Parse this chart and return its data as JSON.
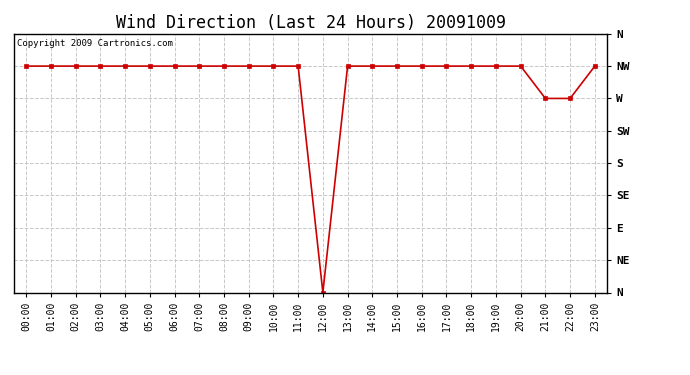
{
  "title": "Wind Direction (Last 24 Hours) 20091009",
  "copyright_text": "Copyright 2009 Cartronics.com",
  "background_color": "#ffffff",
  "plot_bg_color": "#ffffff",
  "line_color": "#cc0000",
  "marker_color": "#cc0000",
  "grid_color": "#c8c8c8",
  "x_labels": [
    "00:00",
    "01:00",
    "02:00",
    "03:00",
    "04:00",
    "05:00",
    "06:00",
    "07:00",
    "08:00",
    "09:00",
    "10:00",
    "11:00",
    "12:00",
    "13:00",
    "14:00",
    "15:00",
    "16:00",
    "17:00",
    "18:00",
    "19:00",
    "20:00",
    "21:00",
    "22:00",
    "23:00"
  ],
  "y_ticks": [
    360,
    315,
    270,
    225,
    180,
    135,
    90,
    45,
    0
  ],
  "y_labels": [
    "N",
    "NW",
    "W",
    "SW",
    "S",
    "SE",
    "E",
    "NE",
    "N"
  ],
  "y_values": [
    315,
    315,
    315,
    315,
    315,
    315,
    315,
    315,
    315,
    315,
    315,
    315,
    0,
    315,
    315,
    315,
    315,
    315,
    315,
    315,
    315,
    270,
    270,
    315
  ],
  "ylim_min": 0,
  "ylim_max": 360,
  "title_fontsize": 12,
  "tick_fontsize": 7,
  "ytick_fontsize": 8,
  "copyright_fontsize": 6.5
}
